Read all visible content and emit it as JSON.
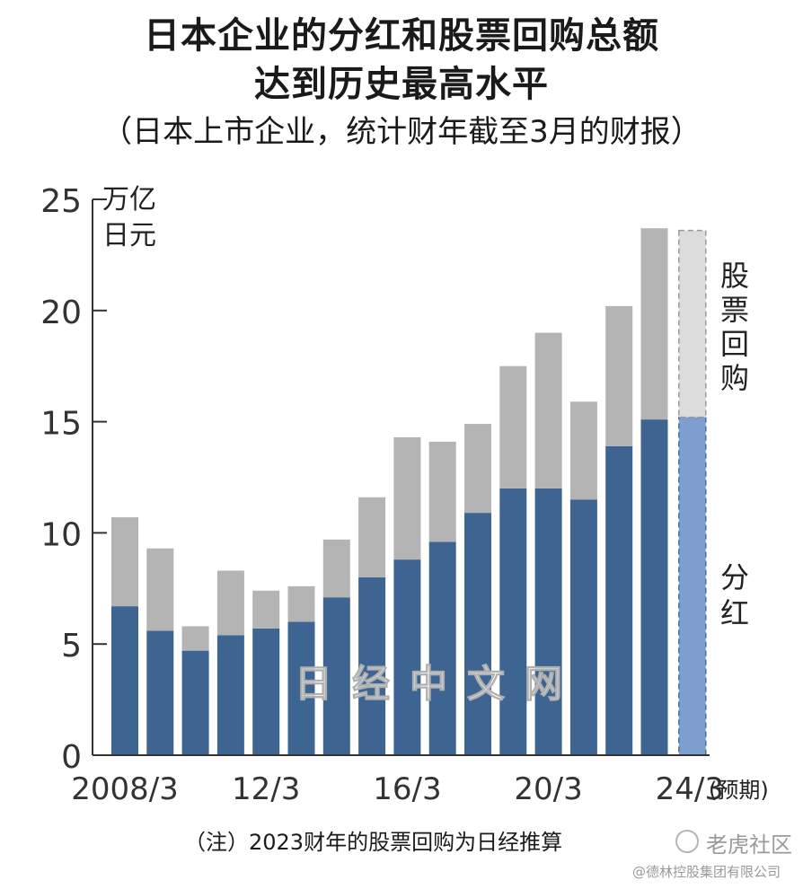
{
  "title_line1": "日本企业的分红和股票回购总额",
  "title_line2": "达到历史最高水平",
  "subtitle": "（日本上市企业，统计财年截至3月的财报）",
  "note": "（注）2023财年的股票回购为日经推算",
  "watermark_center": "日经中文网",
  "watermark_brand": "老虎社区",
  "watermark_copyright": "@德林控股集团有限公司",
  "colors": {
    "dividend": "#3e6591",
    "buyback": "#b4b4b4",
    "dividend_forecast": "#7f9ed0",
    "buyback_forecast": "#dcdcdc"
  },
  "chart_data": {
    "type": "bar",
    "stacked": true,
    "unit_label": [
      "万亿",
      "日元"
    ],
    "categories": [
      "2008/3",
      "2009/3",
      "2010/3",
      "2011/3",
      "2012/3",
      "2013/3",
      "2014/3",
      "2015/3",
      "2016/3",
      "2017/3",
      "2018/3",
      "2019/3",
      "2020/3",
      "2021/3",
      "2022/3",
      "2023/3",
      "2024/3"
    ],
    "tick_labels": [
      {
        "index": 0,
        "text": "2008/3"
      },
      {
        "index": 4,
        "text": "12/3"
      },
      {
        "index": 8,
        "text": "16/3"
      },
      {
        "index": 12,
        "text": "20/3"
      },
      {
        "index": 16,
        "text": "24/3"
      }
    ],
    "forecast_label": "(预期)",
    "series": [
      {
        "name": "分红",
        "values": [
          6.7,
          5.6,
          4.7,
          5.4,
          5.7,
          6.0,
          7.1,
          8.0,
          8.8,
          9.6,
          10.9,
          12.0,
          12.0,
          11.5,
          13.9,
          15.1,
          15.2
        ]
      },
      {
        "name": "股票回购",
        "values": [
          4.0,
          3.7,
          1.1,
          2.9,
          1.7,
          1.6,
          2.6,
          3.6,
          5.5,
          4.5,
          4.0,
          5.5,
          7.0,
          4.4,
          6.3,
          8.6,
          8.4
        ]
      }
    ],
    "forecast_index": 16,
    "ylim": [
      0,
      25
    ],
    "yticks": [
      0,
      5,
      10,
      15,
      20,
      25
    ],
    "legend": [
      "股票回购",
      "分红"
    ],
    "legend_position": "right"
  }
}
